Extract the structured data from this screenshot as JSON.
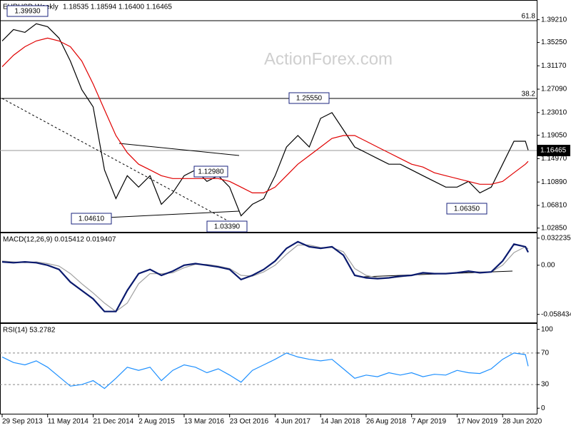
{
  "chart_data": [
    {
      "type": "line",
      "title": "EURUSD Weekly",
      "subtitle": "1.18535 1.18594 1.16400 1.16465",
      "watermark": "ActionForex.com",
      "annotations": [
        "1.39930",
        "1.25550",
        "1.12980",
        "1.04610",
        "1.03390",
        "1.06350"
      ],
      "fib_labels": [
        "61.8",
        "38.2"
      ],
      "last_label": "1.16465",
      "xlim": [
        "2013-09-29",
        "2020-12-13"
      ],
      "x": [
        "2013-09-29",
        "2013-11-24",
        "2014-01-19",
        "2014-03-16",
        "2014-05-11",
        "2014-07-06",
        "2014-08-31",
        "2014-10-26",
        "2014-12-21",
        "2015-02-15",
        "2015-04-12",
        "2015-06-07",
        "2015-08-02",
        "2015-09-27",
        "2015-11-22",
        "2016-01-17",
        "2016-03-13",
        "2016-05-08",
        "2016-07-03",
        "2016-08-28",
        "2016-10-23",
        "2016-12-18",
        "2017-02-12",
        "2017-04-09",
        "2017-06-04",
        "2017-07-30",
        "2017-09-24",
        "2017-11-19",
        "2018-01-14",
        "2018-03-11",
        "2018-05-06",
        "2018-07-01",
        "2018-08-26",
        "2018-10-21",
        "2018-12-16",
        "2019-02-10",
        "2019-04-07",
        "2019-06-02",
        "2019-07-28",
        "2019-09-22",
        "2019-11-17",
        "2020-01-12",
        "2020-03-08",
        "2020-05-03",
        "2020-06-28",
        "2020-08-23",
        "2020-10-18",
        "2020-11-01"
      ],
      "series": [
        {
          "color": "#000000",
          "values": [
            1.355,
            1.375,
            1.37,
            1.385,
            1.38,
            1.36,
            1.32,
            1.27,
            1.24,
            1.13,
            1.08,
            1.12,
            1.1,
            1.12,
            1.07,
            1.09,
            1.12,
            1.13,
            1.11,
            1.12,
            1.1,
            1.05,
            1.07,
            1.08,
            1.12,
            1.17,
            1.19,
            1.17,
            1.22,
            1.23,
            1.2,
            1.17,
            1.16,
            1.15,
            1.14,
            1.14,
            1.13,
            1.12,
            1.11,
            1.1,
            1.1,
            1.11,
            1.09,
            1.1,
            1.14,
            1.18,
            1.18,
            1.16465
          ]
        },
        {
          "color": "#e00000",
          "values": [
            1.31,
            1.33,
            1.345,
            1.355,
            1.36,
            1.355,
            1.345,
            1.32,
            1.28,
            1.235,
            1.19,
            1.16,
            1.14,
            1.13,
            1.12,
            1.115,
            1.115,
            1.115,
            1.115,
            1.115,
            1.11,
            1.1,
            1.09,
            1.09,
            1.1,
            1.12,
            1.14,
            1.155,
            1.17,
            1.185,
            1.19,
            1.19,
            1.18,
            1.17,
            1.16,
            1.15,
            1.14,
            1.135,
            1.125,
            1.12,
            1.115,
            1.11,
            1.105,
            1.105,
            1.11,
            1.125,
            1.14,
            1.145
          ]
        }
      ],
      "ylim": [
        1.022,
        1.424
      ],
      "yticks": [
        {
          "value": 1.3921,
          "label": "1.39210"
        },
        {
          "value": 1.3525,
          "label": "1.35250"
        },
        {
          "value": 1.3117,
          "label": "1.31170"
        },
        {
          "value": 1.2709,
          "label": "1.27090"
        },
        {
          "value": 1.2301,
          "label": "1.23010"
        },
        {
          "value": 1.1905,
          "label": "1.19050"
        },
        {
          "value": 1.1497,
          "label": "1.14970"
        },
        {
          "value": 1.1089,
          "label": "1.10890"
        },
        {
          "value": 1.0681,
          "label": "1.06810"
        },
        {
          "value": 1.0285,
          "label": "1.02850"
        }
      ]
    },
    {
      "type": "line",
      "title": "MACD(12,26,9) 0.015412 0.019407",
      "xlim": [
        "2013-09-29",
        "2020-12-13"
      ],
      "x": [
        "2013-09-29",
        "2013-11-24",
        "2014-01-19",
        "2014-03-16",
        "2014-05-11",
        "2014-07-06",
        "2014-08-31",
        "2014-10-26",
        "2014-12-21",
        "2015-02-15",
        "2015-04-12",
        "2015-06-07",
        "2015-08-02",
        "2015-09-27",
        "2015-11-22",
        "2016-01-17",
        "2016-03-13",
        "2016-05-08",
        "2016-07-03",
        "2016-08-28",
        "2016-10-23",
        "2016-12-18",
        "2017-02-12",
        "2017-04-09",
        "2017-06-04",
        "2017-07-30",
        "2017-09-24",
        "2017-11-19",
        "2018-01-14",
        "2018-03-11",
        "2018-05-06",
        "2018-07-01",
        "2018-08-26",
        "2018-10-21",
        "2018-12-16",
        "2019-02-10",
        "2019-04-07",
        "2019-06-02",
        "2019-07-28",
        "2019-09-22",
        "2019-11-17",
        "2020-01-12",
        "2020-03-08",
        "2020-05-03",
        "2020-06-28",
        "2020-08-23",
        "2020-10-18",
        "2020-11-01"
      ],
      "series": [
        {
          "color": "#a0a0a0",
          "values": [
            0.005,
            0.004,
            0.003,
            0.004,
            0.002,
            -0.001,
            -0.01,
            -0.022,
            -0.033,
            -0.045,
            -0.055,
            -0.045,
            -0.022,
            -0.01,
            -0.01,
            -0.009,
            -0.003,
            0.001,
            0.001,
            -0.001,
            -0.004,
            -0.012,
            -0.013,
            -0.008,
            0.0,
            0.013,
            0.024,
            0.024,
            0.021,
            0.021,
            0.016,
            -0.004,
            -0.012,
            -0.015,
            -0.015,
            -0.014,
            -0.012,
            -0.01,
            -0.01,
            -0.01,
            -0.009,
            -0.008,
            -0.008,
            -0.008,
            0.0,
            0.015,
            0.022,
            0.019407
          ]
        },
        {
          "color": "#0a1a6e",
          "values": [
            0.004,
            0.003,
            0.004,
            0.003,
            0.0,
            -0.005,
            -0.02,
            -0.03,
            -0.04,
            -0.055,
            -0.055,
            -0.03,
            -0.01,
            -0.005,
            -0.012,
            -0.007,
            0.0,
            0.002,
            0.0,
            -0.002,
            -0.005,
            -0.017,
            -0.012,
            -0.005,
            0.005,
            0.02,
            0.028,
            0.022,
            0.02,
            0.022,
            0.012,
            -0.012,
            -0.015,
            -0.016,
            -0.015,
            -0.013,
            -0.012,
            -0.009,
            -0.01,
            -0.01,
            -0.009,
            -0.007,
            -0.009,
            -0.008,
            0.005,
            0.025,
            0.022,
            0.015412
          ]
        }
      ],
      "ylim": [
        -0.068,
        0.038
      ],
      "yticks": [
        0.032235,
        {
          "value": 0,
          "label": "0.00"
        },
        -0.058434
      ]
    },
    {
      "type": "line",
      "title": "RSI(14) 53.2782",
      "xlim": [
        "2013-09-29",
        "2020-12-13"
      ],
      "x": [
        "2013-09-29",
        "2013-11-24",
        "2014-01-19",
        "2014-03-16",
        "2014-05-11",
        "2014-07-06",
        "2014-08-31",
        "2014-10-26",
        "2014-12-21",
        "2015-02-15",
        "2015-04-12",
        "2015-06-07",
        "2015-08-02",
        "2015-09-27",
        "2015-11-22",
        "2016-01-17",
        "2016-03-13",
        "2016-05-08",
        "2016-07-03",
        "2016-08-28",
        "2016-10-23",
        "2016-12-18",
        "2017-02-12",
        "2017-04-09",
        "2017-06-04",
        "2017-07-30",
        "2017-09-24",
        "2017-11-19",
        "2018-01-14",
        "2018-03-11",
        "2018-05-06",
        "2018-07-01",
        "2018-08-26",
        "2018-10-21",
        "2018-12-16",
        "2019-02-10",
        "2019-04-07",
        "2019-06-02",
        "2019-07-28",
        "2019-09-22",
        "2019-11-17",
        "2020-01-12",
        "2020-03-08",
        "2020-05-03",
        "2020-06-28",
        "2020-08-23",
        "2020-10-18",
        "2020-11-01"
      ],
      "series": [
        {
          "color": "#1e90ff",
          "values": [
            65,
            58,
            55,
            60,
            52,
            40,
            28,
            30,
            35,
            25,
            38,
            52,
            48,
            52,
            35,
            48,
            55,
            52,
            45,
            50,
            42,
            33,
            48,
            55,
            62,
            70,
            65,
            62,
            60,
            62,
            50,
            38,
            42,
            40,
            45,
            42,
            45,
            40,
            43,
            42,
            48,
            45,
            44,
            50,
            62,
            70,
            68,
            53.2782
          ]
        }
      ],
      "ylim": [
        -7,
        107
      ],
      "yticks": [
        0,
        30,
        70,
        100
      ],
      "grid": [
        30,
        70
      ],
      "xticks": [
        {
          "value": "2013-09-29",
          "label": "29 Sep 2013"
        },
        {
          "value": "2014-05-11",
          "label": "11 May 2014"
        },
        {
          "value": "2014-12-21",
          "label": "21 Dec 2014"
        },
        {
          "value": "2015-08-02",
          "label": "2 Aug 2015"
        },
        {
          "value": "2016-03-13",
          "label": "13 Mar 2016"
        },
        {
          "value": "2016-10-23",
          "label": "23 Oct 2016"
        },
        {
          "value": "2017-06-04",
          "label": "4 Jun 2017"
        },
        {
          "value": "2018-01-14",
          "label": "14 Jan 2018"
        },
        {
          "value": "2018-08-26",
          "label": "26 Aug 2018"
        },
        {
          "value": "2019-04-07",
          "label": "7 Apr 2019"
        },
        {
          "value": "2019-11-17",
          "label": "17 Nov 2019"
        },
        {
          "value": "2020-06-28",
          "label": "28 Jun 2020"
        }
      ]
    }
  ]
}
